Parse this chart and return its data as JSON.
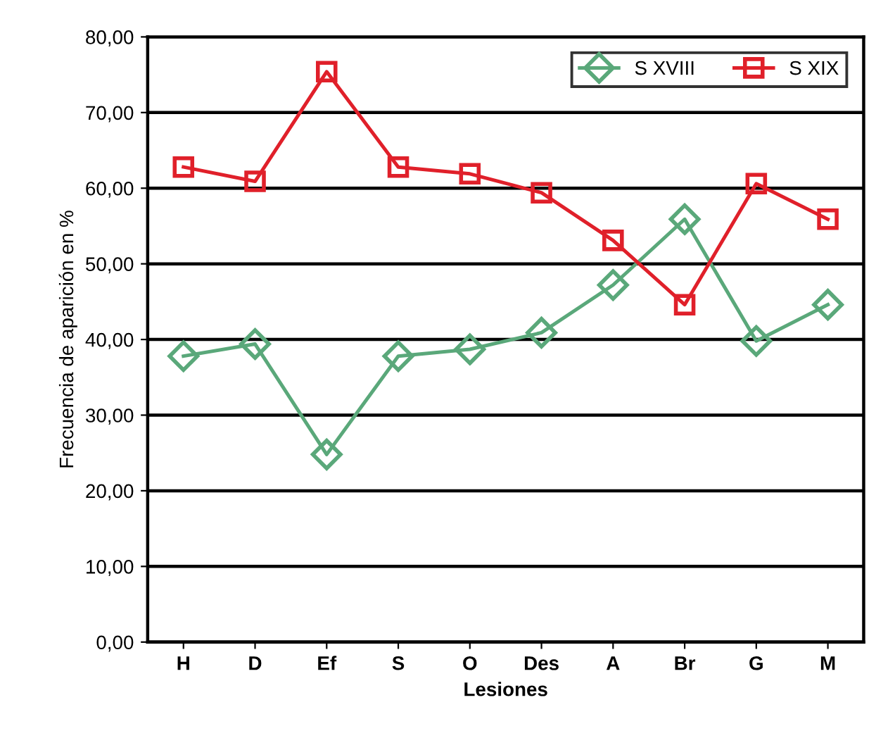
{
  "chart_data": {
    "type": "line",
    "xlabel": "Lesiones",
    "ylabel": "Frecuencia de aparición en %",
    "categories": [
      "H",
      "D",
      "Ef",
      "S",
      "O",
      "Des",
      "A",
      "Br",
      "G",
      "M"
    ],
    "series": [
      {
        "name": "S XVIII",
        "color": "#5aa87a",
        "marker": "diamond",
        "values": [
          37.8,
          39.4,
          24.8,
          37.8,
          38.7,
          40.9,
          47.2,
          55.9,
          39.8,
          44.6
        ]
      },
      {
        "name": "S XIX",
        "color": "#e0202a",
        "marker": "square",
        "values": [
          62.8,
          60.9,
          75.4,
          62.8,
          61.9,
          59.4,
          53.1,
          44.6,
          60.6,
          55.9
        ]
      }
    ],
    "ylim": [
      0,
      80
    ],
    "yticks": [
      {
        "value": 0,
        "label": "0,00"
      },
      {
        "value": 10,
        "label": "10,00"
      },
      {
        "value": 20,
        "label": "20,00"
      },
      {
        "value": 30,
        "label": "30,00"
      },
      {
        "value": 40,
        "label": "40,00"
      },
      {
        "value": 50,
        "label": "50,00"
      },
      {
        "value": 60,
        "label": "60,00"
      },
      {
        "value": 70,
        "label": "70,00"
      },
      {
        "value": 80,
        "label": "80,00"
      }
    ],
    "grid": "y",
    "legend": "top right",
    "line_style": "solid"
  }
}
